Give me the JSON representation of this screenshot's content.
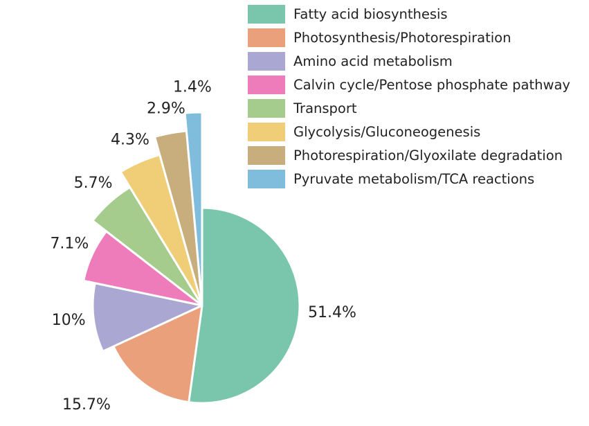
{
  "chart_data": {
    "type": "pie",
    "title": "",
    "series": [
      {
        "name": "Fatty acid biosynthesis",
        "value": 51.4,
        "label": "51.4%",
        "color": "#79c6ad"
      },
      {
        "name": "Photosynthesis/Photorespiration",
        "value": 15.7,
        "label": "15.7%",
        "color": "#e9a07b"
      },
      {
        "name": "Amino acid metabolism",
        "value": 10,
        "label": "10%",
        "color": "#aaa8d2"
      },
      {
        "name": "Calvin cycle/Pentose phosphate pathway",
        "value": 7.1,
        "label": "7.1%",
        "color": "#ee7cbb"
      },
      {
        "name": "Transport",
        "value": 5.7,
        "label": "5.7%",
        "color": "#a5cc8d"
      },
      {
        "name": "Glycolysis/Gluconeogenesis",
        "value": 4.3,
        "label": "4.3%",
        "color": "#f0ce77"
      },
      {
        "name": "Photorespiration/Glyoxilate degradation",
        "value": 2.9,
        "label": "2.9%",
        "color": "#c8ad7d"
      },
      {
        "name": "Pyruvate metabolism/TCA reactions",
        "value": 1.4,
        "label": "1.4%",
        "color": "#80bcdb"
      }
    ],
    "exploded": true,
    "start_angle": "12 o'clock, clockwise",
    "legend_position": "top-right"
  }
}
